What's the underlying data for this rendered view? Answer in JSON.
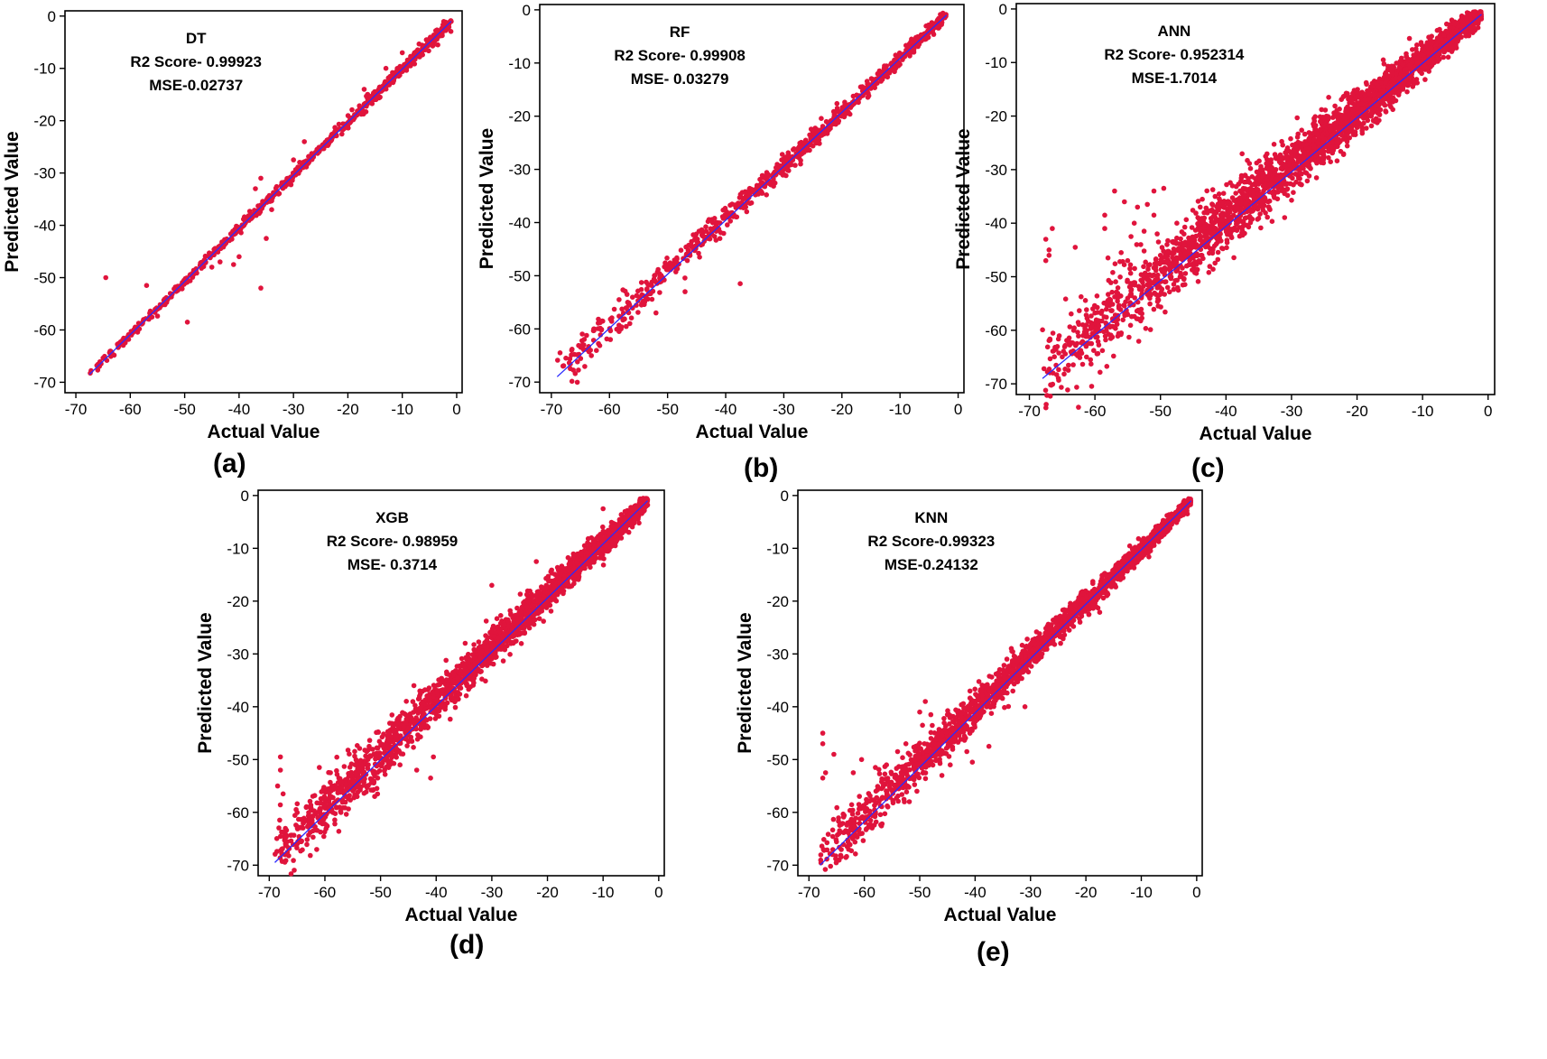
{
  "colors": {
    "points": "#e0143c",
    "line": "#2a2aff",
    "axis": "#000000"
  },
  "chart_data": [
    {
      "type": "scatter",
      "panel": "(a)",
      "model": "DT",
      "r2_text": "R2 Score- 0.99923",
      "mse_text": "MSE-0.02737",
      "xlabel": "Actual Value",
      "ylabel": "Predicted Value",
      "xlim": [
        -72,
        1
      ],
      "ylim": [
        -72,
        1
      ],
      "xticks": [
        -70,
        -60,
        -50,
        -40,
        -30,
        -20,
        -10,
        0
      ],
      "yticks": [
        -70,
        -60,
        -50,
        -40,
        -30,
        -20,
        -10,
        0
      ],
      "fit_line": {
        "x": [
          -67.5,
          -1
        ],
        "y": [
          -68.5,
          -1
        ]
      },
      "scatter": {
        "spread_lo": 0.8,
        "spread_mid": 0.8,
        "spread_hi": 1.2,
        "density": 700
      },
      "outliers": [
        {
          "x": -64.5,
          "y": -50.0
        },
        {
          "x": -57.0,
          "y": -51.5
        },
        {
          "x": -49.5,
          "y": -58.5
        },
        {
          "x": -36.0,
          "y": -52.0
        },
        {
          "x": -45.0,
          "y": -48.0
        },
        {
          "x": -43.5,
          "y": -47.0
        },
        {
          "x": -36.0,
          "y": -31.0
        },
        {
          "x": -35.0,
          "y": -42.5
        },
        {
          "x": -34.0,
          "y": -37.0
        },
        {
          "x": -37.0,
          "y": -33.0
        },
        {
          "x": -30.0,
          "y": -27.5
        },
        {
          "x": -28.0,
          "y": -24.0
        },
        {
          "x": -41.0,
          "y": -47.5
        },
        {
          "x": -40.0,
          "y": -46.0
        },
        {
          "x": -13.0,
          "y": -10.0
        },
        {
          "x": -10.0,
          "y": -7.0
        },
        {
          "x": -17.0,
          "y": -14.0
        }
      ]
    },
    {
      "type": "scatter",
      "panel": "(b)",
      "model": "RF",
      "r2_text": "R2 Score- 0.99908",
      "mse_text": "MSE- 0.03279",
      "xlabel": "Actual Value",
      "ylabel": "Predicted Value",
      "xlim": [
        -72,
        1
      ],
      "ylim": [
        -72,
        1
      ],
      "xticks": [
        -70,
        -60,
        -50,
        -40,
        -30,
        -20,
        -10,
        0
      ],
      "yticks": [
        -70,
        -60,
        -50,
        -40,
        -30,
        -20,
        -10,
        0
      ],
      "fit_line": {
        "x": [
          -69,
          -2
        ],
        "y": [
          -69,
          -1
        ]
      },
      "scatter": {
        "spread_lo": 3.5,
        "spread_mid": 2.0,
        "spread_hi": 1.0,
        "density": 800
      },
      "outliers": [
        {
          "x": -68.5,
          "y": -64.5
        },
        {
          "x": -67.5,
          "y": -65.5
        },
        {
          "x": -68.0,
          "y": -67.0
        },
        {
          "x": -66.5,
          "y": -64.0
        },
        {
          "x": -58.0,
          "y": -60.0
        },
        {
          "x": -56.5,
          "y": -59.0
        },
        {
          "x": -37.5,
          "y": -51.5
        },
        {
          "x": -47.0,
          "y": -53.0
        },
        {
          "x": -52.0,
          "y": -57.0
        },
        {
          "x": -54.5,
          "y": -55.5
        },
        {
          "x": -44.5,
          "y": -46.5
        },
        {
          "x": -41.0,
          "y": -43.0
        }
      ]
    },
    {
      "type": "scatter",
      "panel": "(c)",
      "model": "ANN",
      "r2_text": "R2 Score- 0.952314",
      "mse_text": "MSE-1.7014",
      "xlabel": "Actual Value",
      "ylabel": "Predicted Value",
      "xlim": [
        -72,
        1
      ],
      "ylim": [
        -72,
        1
      ],
      "xticks": [
        -70,
        -60,
        -50,
        -40,
        -30,
        -20,
        -10,
        0
      ],
      "yticks": [
        -70,
        -60,
        -50,
        -40,
        -30,
        -20,
        -10,
        0
      ],
      "fit_line": {
        "x": [
          -68,
          -1
        ],
        "y": [
          -69,
          -1
        ]
      },
      "scatter": {
        "spread_lo": 7.0,
        "spread_mid": 5.0,
        "spread_hi": 2.0,
        "density": 2600
      },
      "outliers": [
        {
          "x": -67.5,
          "y": -43.0
        },
        {
          "x": -67.0,
          "y": -45.0
        },
        {
          "x": -67.5,
          "y": -47.0
        },
        {
          "x": -66.5,
          "y": -41.0
        },
        {
          "x": -67.0,
          "y": -46.0
        },
        {
          "x": -63.0,
          "y": -44.5
        },
        {
          "x": -58.5,
          "y": -41.0
        },
        {
          "x": -55.5,
          "y": -36.0
        },
        {
          "x": -57.0,
          "y": -34.0
        },
        {
          "x": -53.5,
          "y": -37.0
        },
        {
          "x": -52.0,
          "y": -36.5
        },
        {
          "x": -51.0,
          "y": -38.5
        },
        {
          "x": -52.5,
          "y": -41.5
        },
        {
          "x": -54.5,
          "y": -42.5
        },
        {
          "x": -58.0,
          "y": -46.5
        },
        {
          "x": -56.0,
          "y": -45.5
        },
        {
          "x": -55.0,
          "y": -47.0
        },
        {
          "x": -53.0,
          "y": -44.0
        },
        {
          "x": -50.0,
          "y": -46.0
        },
        {
          "x": -49.0,
          "y": -44.0
        },
        {
          "x": -47.5,
          "y": -40.0
        },
        {
          "x": -48.5,
          "y": -47.5
        },
        {
          "x": -46.0,
          "y": -48.0
        },
        {
          "x": -51.0,
          "y": -34.0
        },
        {
          "x": -49.5,
          "y": -33.5
        },
        {
          "x": -58.5,
          "y": -38.5
        },
        {
          "x": -54.0,
          "y": -40.0
        },
        {
          "x": -50.5,
          "y": -42.0
        },
        {
          "x": -12.0,
          "y": -5.5
        },
        {
          "x": -16.0,
          "y": -9.5
        }
      ]
    },
    {
      "type": "scatter",
      "panel": "(d)",
      "model": "XGB",
      "r2_text": "R2 Score- 0.98959",
      "mse_text": "MSE- 0.3714",
      "xlabel": "Actual Value",
      "ylabel": "Predicted Value",
      "xlim": [
        -72,
        1
      ],
      "ylim": [
        -72,
        1
      ],
      "xticks": [
        -70,
        -60,
        -50,
        -40,
        -30,
        -20,
        -10,
        0
      ],
      "yticks": [
        -70,
        -60,
        -50,
        -40,
        -30,
        -20,
        -10,
        0
      ],
      "fit_line": {
        "x": [
          -69,
          -2
        ],
        "y": [
          -69.5,
          -1
        ]
      },
      "scatter": {
        "spread_lo": 5.5,
        "spread_mid": 3.5,
        "spread_hi": 1.5,
        "density": 2200
      },
      "outliers": [
        {
          "x": -68.0,
          "y": -49.5
        },
        {
          "x": -68.0,
          "y": -52.0
        },
        {
          "x": -68.5,
          "y": -55.0
        },
        {
          "x": -67.5,
          "y": -56.5
        },
        {
          "x": -61.0,
          "y": -51.5
        },
        {
          "x": -59.0,
          "y": -52.5
        },
        {
          "x": -57.5,
          "y": -53.5
        },
        {
          "x": -55.0,
          "y": -54.0
        },
        {
          "x": -53.5,
          "y": -51.0
        },
        {
          "x": -50.5,
          "y": -53.5
        },
        {
          "x": -49.5,
          "y": -47.5
        },
        {
          "x": -52.0,
          "y": -49.5
        },
        {
          "x": -48.5,
          "y": -45.0
        },
        {
          "x": -47.0,
          "y": -42.5
        },
        {
          "x": -45.5,
          "y": -43.0
        },
        {
          "x": -43.5,
          "y": -52.0
        },
        {
          "x": -41.0,
          "y": -53.5
        },
        {
          "x": -40.5,
          "y": -49.5
        },
        {
          "x": -44.0,
          "y": -36.0
        },
        {
          "x": -43.0,
          "y": -38.0
        },
        {
          "x": -56.5,
          "y": -56.5
        },
        {
          "x": -46.5,
          "y": -51.0
        },
        {
          "x": -30.0,
          "y": -17.0
        },
        {
          "x": -22.0,
          "y": -12.5
        },
        {
          "x": -10.0,
          "y": -2.5
        },
        {
          "x": -6.0,
          "y": -4.5
        }
      ]
    },
    {
      "type": "scatter",
      "panel": "(e)",
      "model": "KNN",
      "r2_text": "R2 Score-0.99323",
      "mse_text": "MSE-0.24132",
      "xlabel": "Actual Value",
      "ylabel": "Predicted Value",
      "xlim": [
        -72,
        1
      ],
      "ylim": [
        -72,
        1
      ],
      "xticks": [
        -70,
        -60,
        -50,
        -40,
        -30,
        -20,
        -10,
        0
      ],
      "yticks": [
        -70,
        -60,
        -50,
        -40,
        -30,
        -20,
        -10,
        0
      ],
      "fit_line": {
        "x": [
          -68,
          -1
        ],
        "y": [
          -70,
          -1
        ]
      },
      "scatter": {
        "spread_lo": 5.0,
        "spread_mid": 2.8,
        "spread_hi": 1.0,
        "density": 2000
      },
      "outliers": [
        {
          "x": -67.5,
          "y": -45.0
        },
        {
          "x": -67.5,
          "y": -47.0
        },
        {
          "x": -67.0,
          "y": -52.5
        },
        {
          "x": -67.5,
          "y": -53.5
        },
        {
          "x": -65.5,
          "y": -49.0
        },
        {
          "x": -62.0,
          "y": -52.5
        },
        {
          "x": -60.5,
          "y": -50.0
        },
        {
          "x": -58.0,
          "y": -51.5
        },
        {
          "x": -56.0,
          "y": -51.0
        },
        {
          "x": -54.0,
          "y": -48.5
        },
        {
          "x": -52.5,
          "y": -47.0
        },
        {
          "x": -51.0,
          "y": -50.0
        },
        {
          "x": -49.5,
          "y": -43.5
        },
        {
          "x": -48.0,
          "y": -41.5
        },
        {
          "x": -49.0,
          "y": -39.0
        },
        {
          "x": -50.0,
          "y": -41.0
        },
        {
          "x": -44.5,
          "y": -51.0
        },
        {
          "x": -41.5,
          "y": -48.5
        },
        {
          "x": -40.5,
          "y": -50.5
        },
        {
          "x": -37.5,
          "y": -47.5
        },
        {
          "x": -31.0,
          "y": -40.0
        },
        {
          "x": -32.0,
          "y": -34.0
        },
        {
          "x": -46.0,
          "y": -53.0
        },
        {
          "x": -50.5,
          "y": -56.0
        }
      ]
    }
  ]
}
